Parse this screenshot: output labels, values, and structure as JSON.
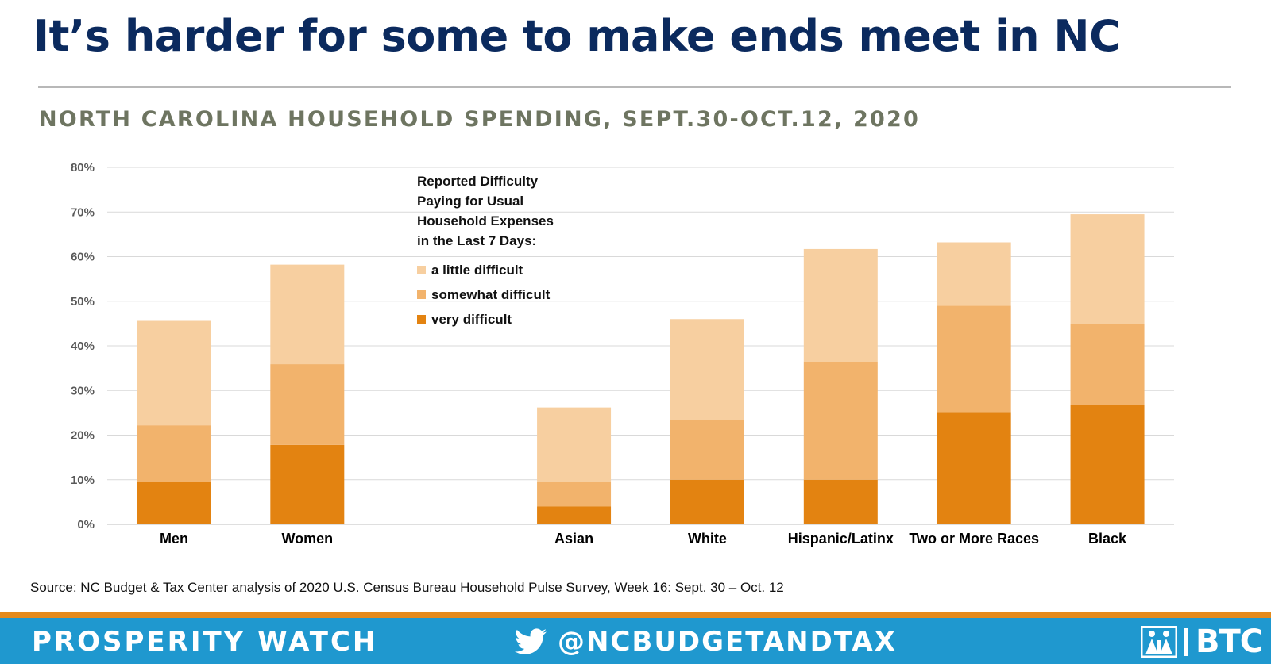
{
  "header": {
    "title": "It’s harder for some to make ends meet in NC",
    "subtitle": "NORTH CAROLINA HOUSEHOLD SPENDING, SEPT.30-OCT.12, 2020"
  },
  "legend": {
    "title": "Reported Difficulty\nPaying for Usual\nHousehold Expenses\nin the Last 7 Days:",
    "items": [
      "a little difficult",
      "somewhat difficult",
      "very difficult"
    ]
  },
  "chart_data": {
    "type": "bar",
    "stacked": true,
    "categories": [
      "Men",
      "Women",
      "",
      "Asian",
      "White",
      "Hispanic/Latinx",
      "Two or More Races",
      "Black"
    ],
    "series": [
      {
        "name": "very difficult",
        "color": "#e38311",
        "values": [
          9.5,
          17.8,
          null,
          4.0,
          10.0,
          10.0,
          25.2,
          26.7
        ]
      },
      {
        "name": "somewhat difficult",
        "color": "#f2b36c",
        "values": [
          12.7,
          18.1,
          null,
          5.5,
          13.3,
          26.5,
          23.8,
          18.1
        ]
      },
      {
        "name": "a little difficult",
        "color": "#f7cfa0",
        "values": [
          23.4,
          22.3,
          null,
          16.7,
          22.7,
          25.2,
          14.2,
          24.7
        ]
      }
    ],
    "yticks": [
      "0%",
      "10%",
      "20%",
      "30%",
      "40%",
      "50%",
      "60%",
      "70%",
      "80%"
    ],
    "ylim": [
      0,
      80
    ],
    "grid": true,
    "legend_position": "top-center"
  },
  "source": "Source: NC Budget & Tax Center analysis of 2020 U.S. Census Bureau Household Pulse Survey, Week 16: Sept. 30 – Oct. 12",
  "footer": {
    "left": "PROSPERITY WATCH",
    "handle": "@NCBUDGETANDTAX",
    "logo_text": "BTC",
    "twitter_icon": "twitter-bird-icon",
    "logo_icon": "btc-logo-icon",
    "bar_color": "#1f98cf",
    "stripe_color": "#e48a1c"
  }
}
